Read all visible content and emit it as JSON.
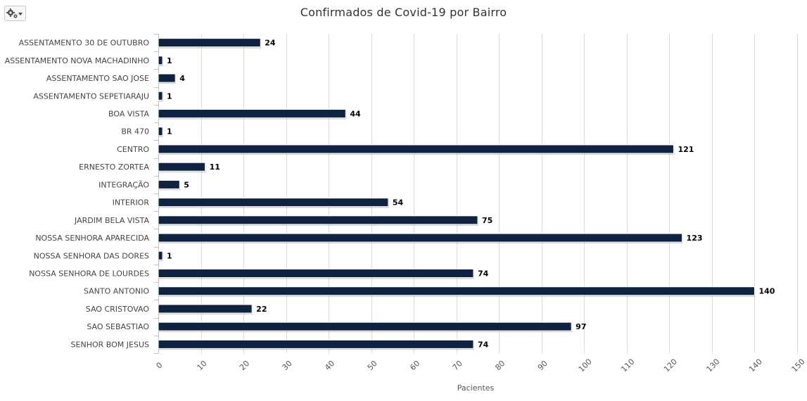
{
  "toolbar": {
    "menu_icon": "gear-icon"
  },
  "chart_data": {
    "type": "bar",
    "orientation": "horizontal",
    "title": "Confirmados de Covid-19 por Bairro",
    "xlabel": "Pacientes",
    "ylabel": "",
    "xlim": [
      0,
      150
    ],
    "ticks": [
      0,
      10,
      20,
      30,
      40,
      50,
      60,
      70,
      80,
      90,
      100,
      110,
      120,
      130,
      140,
      150
    ],
    "grid": true,
    "legend": "none",
    "bar_color": "#0f2340",
    "categories": [
      "ASSENTAMENTO 30 DE OUTUBRO",
      "ASSENTAMENTO NOVA MACHADINHO",
      "ASSENTAMENTO SAO JOSE",
      "ASSENTAMENTO SEPETIARAJU",
      "BOA VISTA",
      "BR 470",
      "CENTRO",
      "ERNESTO ZORTEA",
      "INTEGRAÇÃO",
      "INTERIOR",
      "JARDIM BELA VISTA",
      "NOSSA SENHORA APARECIDA",
      "NOSSA SENHORA DAS DORES",
      "NOSSA SENHORA DE LOURDES",
      "SANTO ANTONIO",
      "SAO CRISTOVAO",
      "SAO SEBASTIAO",
      "SENHOR BOM JESUS"
    ],
    "values": [
      24,
      1,
      4,
      1,
      44,
      1,
      121,
      11,
      5,
      54,
      75,
      123,
      1,
      74,
      140,
      22,
      97,
      74
    ]
  }
}
